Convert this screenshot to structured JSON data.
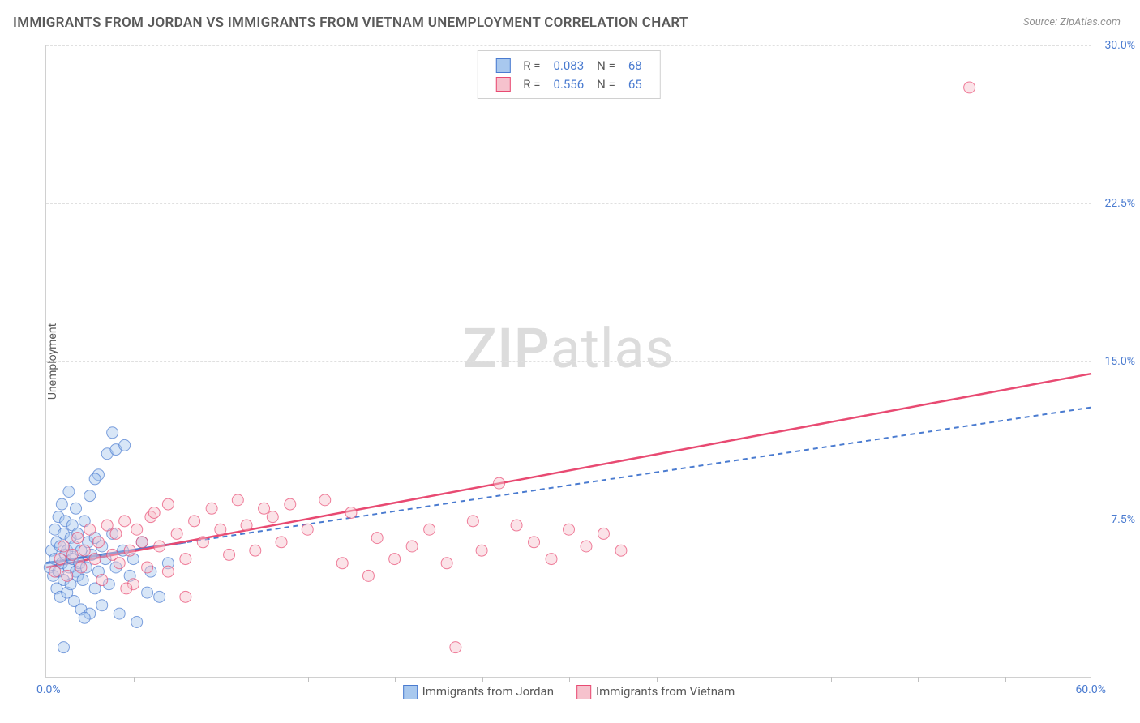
{
  "title": "IMMIGRANTS FROM JORDAN VS IMMIGRANTS FROM VIETNAM UNEMPLOYMENT CORRELATION CHART",
  "source": "Source: ZipAtlas.com",
  "ylabel": "Unemployment",
  "watermark_zip": "ZIP",
  "watermark_atlas": "atlas",
  "chart": {
    "type": "scatter",
    "xlim": [
      0,
      60
    ],
    "ylim": [
      0,
      30
    ],
    "x_min_label": "0.0%",
    "x_max_label": "60.0%",
    "y_ticks": [
      7.5,
      15.0,
      22.5,
      30.0
    ],
    "y_tick_labels": [
      "7.5%",
      "15.0%",
      "22.5%",
      "30.0%"
    ],
    "x_minor_ticks": [
      5,
      10,
      15,
      20,
      25,
      30,
      35,
      40,
      45,
      50,
      55
    ],
    "background_color": "#ffffff",
    "grid_color": "#e0e0e0",
    "axis_color": "#d0d0d0",
    "tick_label_color": "#4a7bd0",
    "marker_radius": 7,
    "marker_opacity": 0.45,
    "line_width": 2
  },
  "series": [
    {
      "id": "jordan",
      "label": "Immigrants from Jordan",
      "fill": "#a8c8ee",
      "stroke": "#4a7bd0",
      "r": 0.083,
      "n": 68,
      "line_style": "dashed",
      "regression": {
        "x1": 0,
        "y1": 5.4,
        "x2": 60,
        "y2": 12.8
      },
      "solid_segment": {
        "x1": 0,
        "y1": 5.4,
        "x2": 8,
        "y2": 6.4
      },
      "points": [
        [
          0.2,
          5.2
        ],
        [
          0.3,
          6.0
        ],
        [
          0.4,
          4.8
        ],
        [
          0.5,
          5.6
        ],
        [
          0.5,
          7.0
        ],
        [
          0.6,
          4.2
        ],
        [
          0.6,
          6.4
        ],
        [
          0.7,
          5.0
        ],
        [
          0.7,
          7.6
        ],
        [
          0.8,
          3.8
        ],
        [
          0.8,
          6.2
        ],
        [
          0.9,
          5.4
        ],
        [
          0.9,
          8.2
        ],
        [
          1.0,
          4.6
        ],
        [
          1.0,
          6.8
        ],
        [
          1.1,
          5.8
        ],
        [
          1.1,
          7.4
        ],
        [
          1.2,
          4.0
        ],
        [
          1.2,
          6.0
        ],
        [
          1.3,
          5.2
        ],
        [
          1.3,
          8.8
        ],
        [
          1.4,
          4.4
        ],
        [
          1.4,
          6.6
        ],
        [
          1.5,
          5.6
        ],
        [
          1.5,
          7.2
        ],
        [
          1.6,
          3.6
        ],
        [
          1.6,
          6.2
        ],
        [
          1.7,
          5.0
        ],
        [
          1.7,
          8.0
        ],
        [
          1.8,
          4.8
        ],
        [
          1.8,
          6.8
        ],
        [
          1.9,
          5.4
        ],
        [
          2.0,
          3.2
        ],
        [
          2.0,
          6.0
        ],
        [
          2.1,
          4.6
        ],
        [
          2.2,
          7.4
        ],
        [
          2.3,
          5.2
        ],
        [
          2.4,
          6.4
        ],
        [
          2.5,
          3.0
        ],
        [
          2.5,
          8.6
        ],
        [
          2.6,
          5.8
        ],
        [
          2.8,
          4.2
        ],
        [
          2.8,
          6.6
        ],
        [
          3.0,
          5.0
        ],
        [
          3.0,
          9.6
        ],
        [
          3.2,
          3.4
        ],
        [
          3.2,
          6.2
        ],
        [
          3.4,
          5.6
        ],
        [
          3.5,
          10.6
        ],
        [
          3.6,
          4.4
        ],
        [
          3.8,
          6.8
        ],
        [
          3.8,
          11.6
        ],
        [
          4.0,
          5.2
        ],
        [
          4.0,
          10.8
        ],
        [
          4.2,
          3.0
        ],
        [
          4.4,
          6.0
        ],
        [
          4.5,
          11.0
        ],
        [
          4.8,
          4.8
        ],
        [
          5.0,
          5.6
        ],
        [
          5.2,
          2.6
        ],
        [
          5.5,
          6.4
        ],
        [
          5.8,
          4.0
        ],
        [
          6.0,
          5.0
        ],
        [
          6.5,
          3.8
        ],
        [
          7.0,
          5.4
        ],
        [
          1.0,
          1.4
        ],
        [
          2.8,
          9.4
        ],
        [
          2.2,
          2.8
        ]
      ]
    },
    {
      "id": "vietnam",
      "label": "Immigrants from Vietnam",
      "fill": "#f6c2cd",
      "stroke": "#e84a72",
      "r": 0.556,
      "n": 65,
      "line_style": "solid",
      "regression": {
        "x1": 0,
        "y1": 5.2,
        "x2": 60,
        "y2": 14.4
      },
      "points": [
        [
          0.5,
          5.0
        ],
        [
          0.8,
          5.6
        ],
        [
          1.0,
          6.2
        ],
        [
          1.2,
          4.8
        ],
        [
          1.5,
          5.8
        ],
        [
          1.8,
          6.6
        ],
        [
          2.0,
          5.2
        ],
        [
          2.2,
          6.0
        ],
        [
          2.5,
          7.0
        ],
        [
          2.8,
          5.6
        ],
        [
          3.0,
          6.4
        ],
        [
          3.2,
          4.6
        ],
        [
          3.5,
          7.2
        ],
        [
          3.8,
          5.8
        ],
        [
          4.0,
          6.8
        ],
        [
          4.2,
          5.4
        ],
        [
          4.5,
          7.4
        ],
        [
          4.8,
          6.0
        ],
        [
          5.0,
          4.4
        ],
        [
          5.2,
          7.0
        ],
        [
          5.5,
          6.4
        ],
        [
          5.8,
          5.2
        ],
        [
          6.0,
          7.6
        ],
        [
          6.5,
          6.2
        ],
        [
          7.0,
          5.0
        ],
        [
          7.0,
          8.2
        ],
        [
          7.5,
          6.8
        ],
        [
          8.0,
          5.6
        ],
        [
          8.0,
          3.8
        ],
        [
          8.5,
          7.4
        ],
        [
          9.0,
          6.4
        ],
        [
          9.5,
          8.0
        ],
        [
          10.0,
          7.0
        ],
        [
          10.5,
          5.8
        ],
        [
          11.0,
          8.4
        ],
        [
          11.5,
          7.2
        ],
        [
          12.0,
          6.0
        ],
        [
          12.5,
          8.0
        ],
        [
          13.0,
          7.6
        ],
        [
          13.5,
          6.4
        ],
        [
          14.0,
          8.2
        ],
        [
          15.0,
          7.0
        ],
        [
          16.0,
          8.4
        ],
        [
          17.0,
          5.4
        ],
        [
          17.5,
          7.8
        ],
        [
          18.5,
          4.8
        ],
        [
          19.0,
          6.6
        ],
        [
          20.0,
          5.6
        ],
        [
          21.0,
          6.2
        ],
        [
          22.0,
          7.0
        ],
        [
          23.0,
          5.4
        ],
        [
          24.5,
          7.4
        ],
        [
          25.0,
          6.0
        ],
        [
          26.0,
          9.2
        ],
        [
          27.0,
          7.2
        ],
        [
          28.0,
          6.4
        ],
        [
          29.0,
          5.6
        ],
        [
          30.0,
          7.0
        ],
        [
          31.0,
          6.2
        ],
        [
          32.0,
          6.8
        ],
        [
          33.0,
          6.0
        ],
        [
          23.5,
          1.4
        ],
        [
          53.0,
          28.0
        ],
        [
          6.2,
          7.8
        ],
        [
          4.6,
          4.2
        ]
      ]
    }
  ],
  "legend_top": {
    "r_label": "R =",
    "n_label": "N ="
  }
}
